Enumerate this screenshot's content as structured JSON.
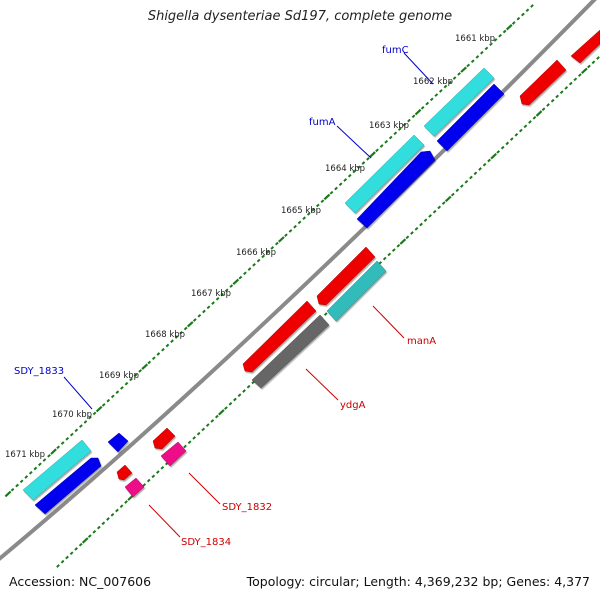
{
  "title": "Shigella dysenteriae Sd197, complete genome",
  "accession_text": "Accession: NC_007606",
  "topology_text": "Topology: circular; Length: 4,369,232 bp; Genes: 4,377",
  "kbp_labels": [
    "1661 kbp",
    "1662 kbp",
    "1663 kbp",
    "1664 kbp",
    "1665 kbp",
    "1666 kbp",
    "1667 kbp",
    "1668 kbp",
    "1669 kbp",
    "1670 kbp",
    "1671 kbp"
  ],
  "gene_labels": [
    {
      "id": "fumC",
      "text": "fumC",
      "strand": "forward",
      "color": "#0000cc"
    },
    {
      "id": "fumA",
      "text": "fumA",
      "strand": "forward",
      "color": "#0000cc"
    },
    {
      "id": "SDY_1833",
      "text": "SDY_1833",
      "strand": "forward",
      "color": "#0000cc"
    },
    {
      "id": "manA",
      "text": "manA",
      "strand": "reverse",
      "color": "#cc0000"
    },
    {
      "id": "ydgA",
      "text": "ydgA",
      "strand": "reverse",
      "color": "#cc0000"
    },
    {
      "id": "SDY_1832",
      "text": "SDY_1832",
      "strand": "reverse",
      "color": "#cc0000"
    },
    {
      "id": "SDY_1834",
      "text": "SDY_1834",
      "strand": "reverse",
      "color": "#cc0000"
    }
  ],
  "colors": {
    "backbone": "#888888",
    "tick": "#1a7a1a",
    "forward_cds": "#0000ee",
    "forward_gene": "#33dddd",
    "reverse_cds": "#ee0000",
    "reverse_gene": "#33bbbb",
    "pseudo": "#666666",
    "rna": "#ee1188",
    "forward_label": "#0000cc",
    "reverse_label": "#cc0000"
  }
}
